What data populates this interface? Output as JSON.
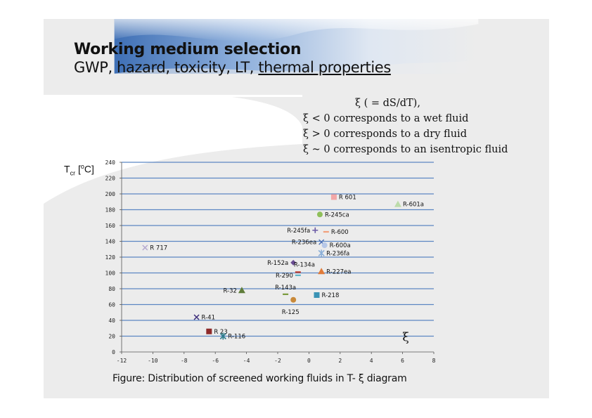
{
  "slide": {
    "title_line1": "Working medium selection",
    "title_line2_prefix": "GWP, hazard, toxicity, LT, ",
    "title_line2_underlined": "thermal properties",
    "notes": [
      "ξ ( = dS/dT),",
      "ξ < 0 corresponds to a wet fluid",
      "ξ > 0 corresponds to a dry fluid",
      "ξ ~ 0 corresponds to an isentropic fluid"
    ],
    "caption": "Figure: Distribution of screened working fluids in T- ξ diagram"
  },
  "chart_data": {
    "type": "scatter",
    "ylabel_main": "T",
    "ylabel_sub": "cr",
    "ylabel_unit_open": " [",
    "ylabel_unit_sup": "o",
    "ylabel_unit_close": "C]",
    "xlabel": "ξ",
    "xlim": [
      -12,
      8
    ],
    "ylim": [
      0,
      240
    ],
    "xticks": [
      "-12",
      "-10",
      "-8",
      "-6",
      "-4",
      "-2",
      "0",
      "2",
      "4",
      "6",
      "8"
    ],
    "yticks": [
      "0",
      "20",
      "40",
      "60",
      "80",
      "100",
      "120",
      "140",
      "160",
      "180",
      "200",
      "220",
      "240"
    ],
    "grid": "horizontal",
    "series": [
      {
        "name": "R 717",
        "x": -10.5,
        "y": 132,
        "marker": "x",
        "color": "#b3a8d0",
        "label_pos": "right"
      },
      {
        "name": "R-41",
        "x": -7.2,
        "y": 44,
        "marker": "x",
        "color": "#3c2c7a",
        "label_pos": "right"
      },
      {
        "name": "R 23",
        "x": -6.4,
        "y": 26,
        "marker": "square",
        "color": "#8e2a2a",
        "label_pos": "right"
      },
      {
        "name": "R-116",
        "x": -5.5,
        "y": 20,
        "marker": "asterisk",
        "color": "#2e7d8c",
        "label_pos": "right"
      },
      {
        "name": "R-32",
        "x": -4.3,
        "y": 78,
        "marker": "triangle",
        "color": "#5f7d3a",
        "label_pos": "left"
      },
      {
        "name": "R-143a",
        "x": -1.5,
        "y": 73,
        "marker": "dash",
        "color": "#7a9a3c",
        "label_pos": "above"
      },
      {
        "name": "R-125",
        "x": -1.0,
        "y": 66,
        "marker": "circle",
        "color": "#c98a3a",
        "label_pos": "below"
      },
      {
        "name": "R-152a",
        "x": -1.0,
        "y": 113,
        "marker": "diamond",
        "color": "#6a4c93",
        "label_pos": "left"
      },
      {
        "name": "R-134a",
        "x": -0.7,
        "y": 101,
        "marker": "dash",
        "color": "#c0392b",
        "label_pos": "above-right"
      },
      {
        "name": "R-290",
        "x": -0.7,
        "y": 97,
        "marker": "dash",
        "color": "#5fb6c9",
        "label_pos": "left"
      },
      {
        "name": "R-245fa",
        "x": 0.4,
        "y": 154,
        "marker": "plus",
        "color": "#6a5aa6",
        "label_pos": "left"
      },
      {
        "name": "R-236ea",
        "x": 0.8,
        "y": 139,
        "marker": "x",
        "color": "#4a6fb5",
        "label_pos": "left"
      },
      {
        "name": "R-245ca",
        "x": 0.7,
        "y": 174,
        "marker": "circle",
        "color": "#8fbf5a",
        "label_pos": "right"
      },
      {
        "name": "R-227ea",
        "x": 0.8,
        "y": 102,
        "marker": "triangle",
        "color": "#e07b39",
        "label_pos": "right"
      },
      {
        "name": "R-218",
        "x": 0.5,
        "y": 72,
        "marker": "square",
        "color": "#3a93b5",
        "label_pos": "right"
      },
      {
        "name": "R-236fa",
        "x": 0.8,
        "y": 125,
        "marker": "asterisk",
        "color": "#8cb0d8",
        "label_pos": "right"
      },
      {
        "name": "R-600a",
        "x": 1.0,
        "y": 135,
        "marker": "circle",
        "color": "#b7c8e8",
        "label_pos": "right"
      },
      {
        "name": "R-600",
        "x": 1.1,
        "y": 152,
        "marker": "dash",
        "color": "#f2a07b",
        "label_pos": "right"
      },
      {
        "name": "R 601",
        "x": 1.6,
        "y": 196,
        "marker": "square",
        "color": "#f2a7a7",
        "label_pos": "right"
      },
      {
        "name": "R-601a",
        "x": 5.7,
        "y": 187,
        "marker": "triangle",
        "color": "#bcdcaa",
        "label_pos": "right"
      }
    ]
  }
}
